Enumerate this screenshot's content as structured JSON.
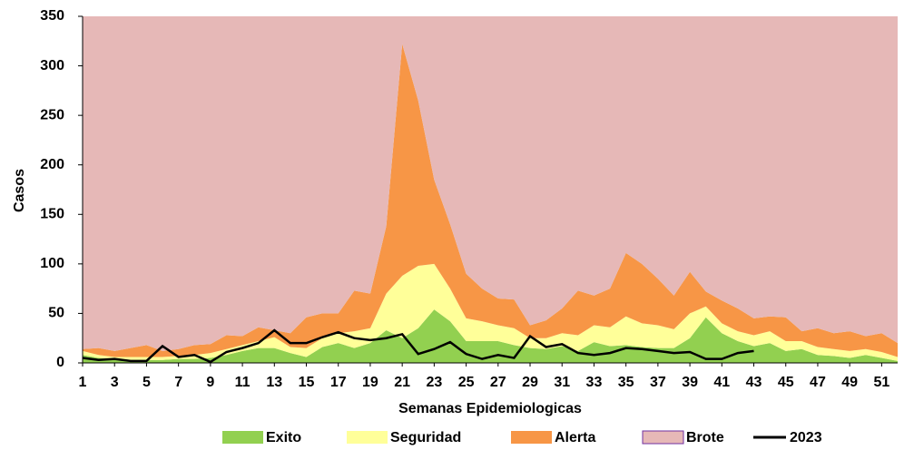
{
  "chart_data": {
    "type": "area",
    "stacked": true,
    "x_label": "Semanas Epidemiologicas",
    "y_label": "Casos",
    "x": [
      1,
      2,
      3,
      4,
      5,
      6,
      7,
      8,
      9,
      10,
      11,
      12,
      13,
      14,
      15,
      16,
      17,
      18,
      19,
      20,
      21,
      22,
      23,
      24,
      25,
      26,
      27,
      28,
      29,
      30,
      31,
      32,
      33,
      34,
      35,
      36,
      37,
      38,
      39,
      40,
      41,
      42,
      43,
      44,
      45,
      46,
      47,
      48,
      49,
      50,
      51,
      52
    ],
    "xlim": [
      1,
      52
    ],
    "xticks": [
      1,
      3,
      5,
      7,
      9,
      11,
      13,
      15,
      17,
      19,
      21,
      23,
      25,
      27,
      29,
      31,
      33,
      35,
      37,
      39,
      41,
      43,
      45,
      47,
      49,
      51
    ],
    "ylim": [
      0,
      350
    ],
    "yticks": [
      0,
      50,
      100,
      150,
      200,
      250,
      300,
      350
    ],
    "series": [
      {
        "name": "Exito",
        "color": "#92d050",
        "values": [
          8,
          5,
          4,
          3,
          3,
          3,
          4,
          4,
          5,
          8,
          12,
          15,
          15,
          10,
          6,
          16,
          20,
          15,
          20,
          33,
          25,
          35,
          54,
          42,
          22,
          22,
          22,
          18,
          15,
          14,
          17,
          12,
          21,
          17,
          18,
          16,
          15,
          15,
          25,
          46,
          30,
          22,
          17,
          20,
          12,
          14,
          8,
          7,
          5,
          8,
          5,
          2
        ]
      },
      {
        "name": "Seguridad",
        "color": "#ffff99",
        "values": [
          4,
          3,
          2,
          3,
          3,
          3,
          3,
          4,
          5,
          6,
          6,
          7,
          11,
          6,
          9,
          9,
          10,
          17,
          15,
          37,
          63,
          63,
          46,
          33,
          23,
          20,
          16,
          17,
          10,
          11,
          13,
          16,
          17,
          19,
          29,
          24,
          23,
          19,
          25,
          11,
          10,
          10,
          11,
          12,
          10,
          8,
          8,
          7,
          7,
          6,
          6,
          4
        ]
      },
      {
        "name": "Alerta",
        "color": "#f79646",
        "values": [
          2,
          7,
          6,
          9,
          12,
          6,
          7,
          10,
          9,
          14,
          9,
          14,
          7,
          14,
          31,
          25,
          20,
          41,
          35,
          68,
          234,
          167,
          85,
          65,
          45,
          33,
          27,
          29,
          13,
          18,
          25,
          45,
          30,
          39,
          64,
          60,
          47,
          34,
          42,
          15,
          23,
          23,
          17,
          15,
          24,
          10,
          19,
          16,
          20,
          13,
          19,
          14
        ]
      },
      {
        "name": "Brote",
        "color": "#e6b8b7",
        "border": "#7030a0",
        "values": [
          336,
          335,
          338,
          335,
          332,
          338,
          336,
          332,
          331,
          322,
          323,
          314,
          317,
          320,
          304,
          300,
          300,
          277,
          280,
          212,
          28,
          85,
          165,
          210,
          260,
          275,
          285,
          286,
          312,
          307,
          295,
          277,
          282,
          275,
          239,
          250,
          265,
          282,
          258,
          278,
          287,
          295,
          305,
          303,
          304,
          318,
          315,
          320,
          318,
          323,
          320,
          330
        ]
      },
      {
        "name": "2023",
        "color": "#000000",
        "kind": "line",
        "values": [
          5,
          3,
          4,
          2,
          2,
          17,
          6,
          8,
          1,
          11,
          15,
          20,
          33,
          20,
          20,
          26,
          31,
          25,
          23,
          25,
          29,
          9,
          14,
          21,
          9,
          4,
          8,
          5,
          27,
          16,
          19,
          10,
          8,
          10,
          15,
          14,
          12,
          10,
          11,
          4,
          4,
          10,
          12,
          null,
          null,
          null,
          null,
          null,
          null,
          null,
          null,
          null
        ]
      }
    ]
  }
}
